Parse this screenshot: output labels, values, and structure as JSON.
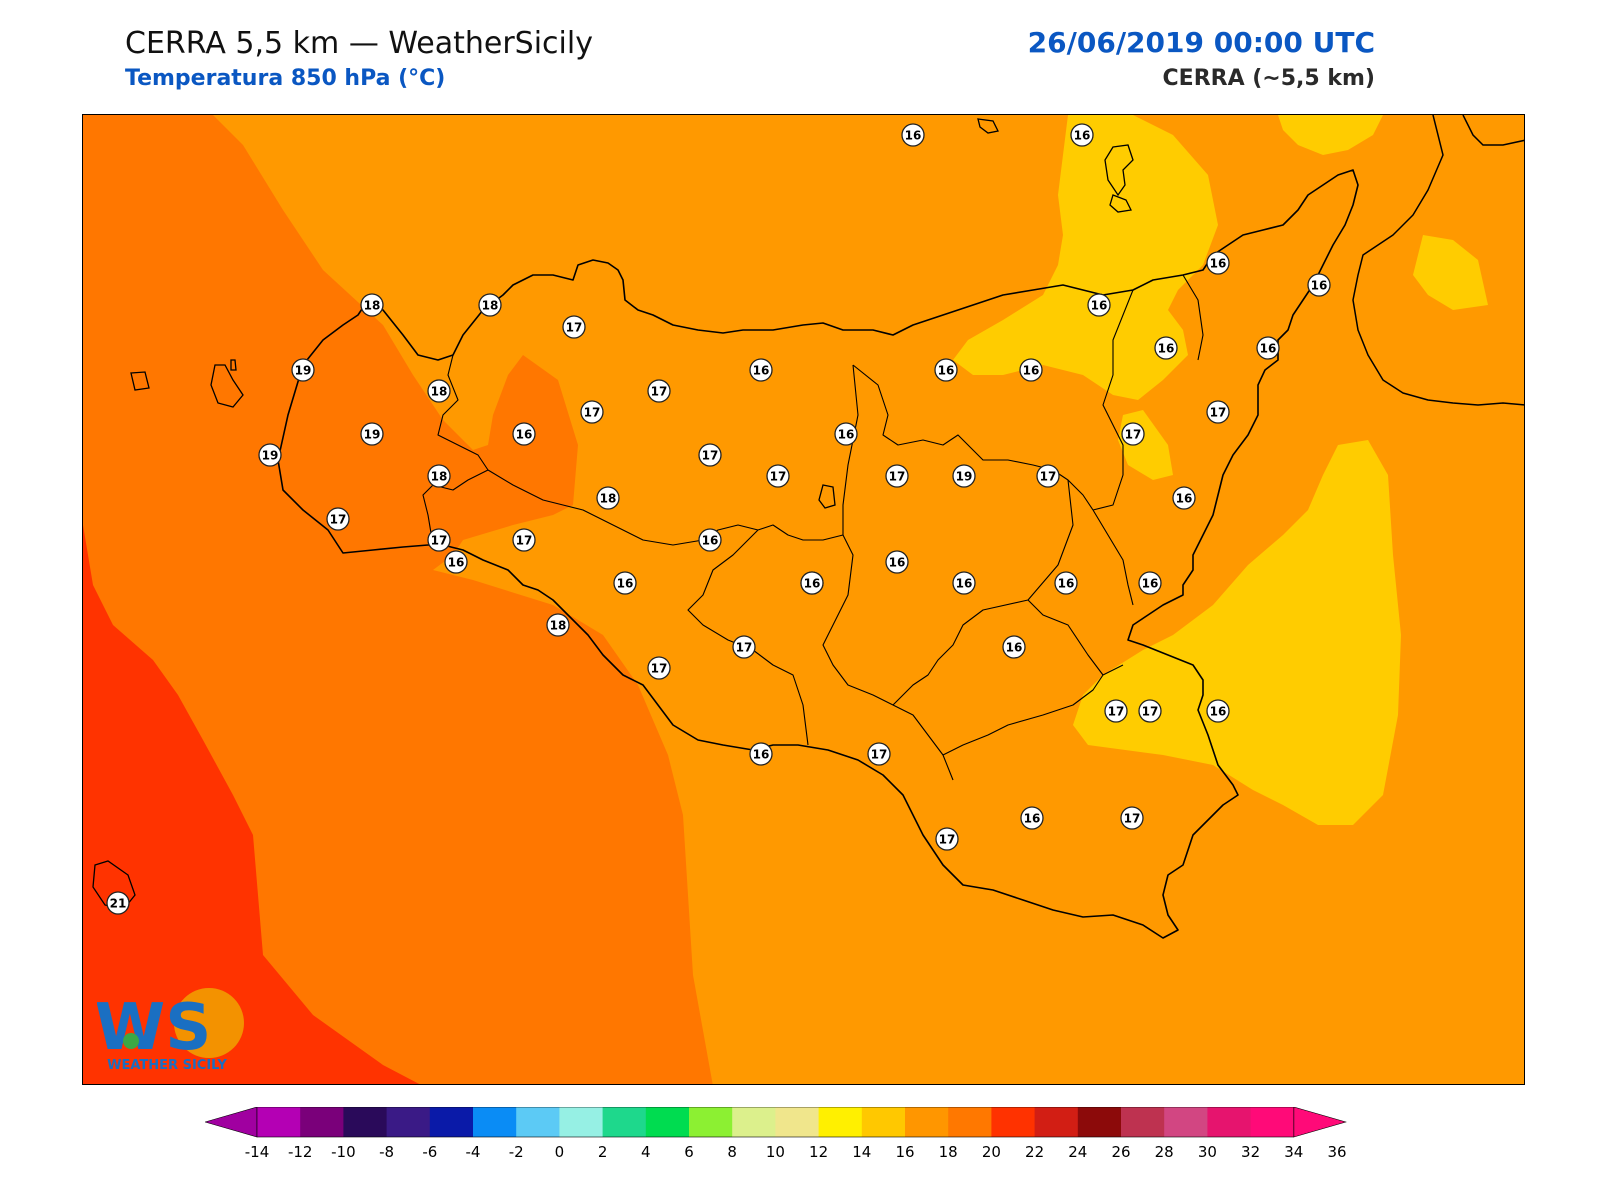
{
  "header": {
    "title": "CERRA 5,5 km — WeatherSicily",
    "subtitle": "Temperatura 850 hPa (°C)",
    "datetime": "26/06/2019 00:00 UTC",
    "model": "CERRA (~5,5 km)"
  },
  "logo": {
    "text": "WEATHER SICILY",
    "letters": "WS"
  },
  "colorbar": {
    "ticks": [
      "-14",
      "-12",
      "-10",
      "-8",
      "-6",
      "-4",
      "-2",
      "0",
      "2",
      "4",
      "6",
      "8",
      "10",
      "12",
      "14",
      "16",
      "18",
      "20",
      "22",
      "24",
      "26",
      "28",
      "30",
      "32",
      "34",
      "36"
    ],
    "colors": [
      "#b400b4",
      "#7a007a",
      "#2a0a5a",
      "#3a1a86",
      "#0a1aa8",
      "#0a8cf5",
      "#5ccaf5",
      "#96f0e4",
      "#1ed88c",
      "#00dc50",
      "#8cf032",
      "#dcf08c",
      "#f0e68c",
      "#fff000",
      "#ffc800",
      "#ff9600",
      "#ff7800",
      "#ff3200",
      "#d21e14",
      "#8c0a0a",
      "#be3250",
      "#d24682",
      "#e6146e",
      "#ff0a78"
    ]
  },
  "map_colors": {
    "c14_16": "#ffcc00",
    "c16_18": "#ff9900",
    "c18_20": "#ff7700",
    "c20_22": "#ff3300",
    "coast": "#000000"
  },
  "stations": [
    "16",
    "16",
    "16",
    "16",
    "18",
    "18",
    "17",
    "19",
    "18",
    "17",
    "17",
    "16",
    "16",
    "16",
    "16",
    "16",
    "16",
    "19",
    "19",
    "18",
    "16",
    "16",
    "17",
    "17",
    "17",
    "17",
    "17",
    "19",
    "17",
    "16",
    "17",
    "17",
    "18",
    "17",
    "16",
    "16",
    "16",
    "17",
    "16",
    "18",
    "17",
    "16",
    "16",
    "16",
    "16",
    "16",
    "16",
    "16",
    "17",
    "17",
    "17",
    "16",
    "17",
    "17",
    "16",
    "21"
  ]
}
